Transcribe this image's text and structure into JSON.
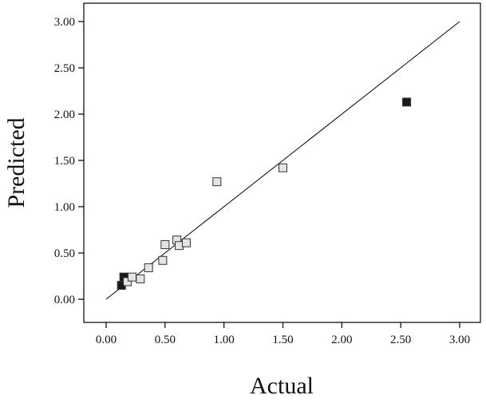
{
  "chart_data": {
    "type": "scatter",
    "title": "",
    "xlabel": "Actual",
    "ylabel": "Predicted",
    "xlim": [
      0,
      3
    ],
    "ylim": [
      0,
      3
    ],
    "x_ticks": [
      "0.00",
      "0.50",
      "1.00",
      "1.50",
      "2.00",
      "2.50",
      "3.00"
    ],
    "y_ticks": [
      "0.00",
      "0.50",
      "1.00",
      "1.50",
      "2.00",
      "2.50",
      "3.00"
    ],
    "grid": false,
    "reference_line": {
      "from": [
        0,
        0
      ],
      "to": [
        3,
        3
      ]
    },
    "points": [
      {
        "x": 0.13,
        "y": 0.15,
        "fill": "dark"
      },
      {
        "x": 0.15,
        "y": 0.24,
        "fill": "dark"
      },
      {
        "x": 0.18,
        "y": 0.19,
        "fill": "light"
      },
      {
        "x": 0.22,
        "y": 0.24,
        "fill": "light"
      },
      {
        "x": 0.29,
        "y": 0.22,
        "fill": "light"
      },
      {
        "x": 0.36,
        "y": 0.34,
        "fill": "light"
      },
      {
        "x": 0.48,
        "y": 0.42,
        "fill": "light"
      },
      {
        "x": 0.5,
        "y": 0.59,
        "fill": "light"
      },
      {
        "x": 0.6,
        "y": 0.64,
        "fill": "light"
      },
      {
        "x": 0.62,
        "y": 0.58,
        "fill": "light"
      },
      {
        "x": 0.68,
        "y": 0.61,
        "fill": "light"
      },
      {
        "x": 0.94,
        "y": 1.27,
        "fill": "light"
      },
      {
        "x": 1.5,
        "y": 1.42,
        "fill": "light"
      },
      {
        "x": 2.55,
        "y": 2.13,
        "fill": "dark"
      }
    ]
  },
  "colors": {
    "axis": "#000000",
    "marker_dark": "#1a1a1a",
    "marker_light": "#e4e4e4",
    "marker_edge": "#333333"
  }
}
